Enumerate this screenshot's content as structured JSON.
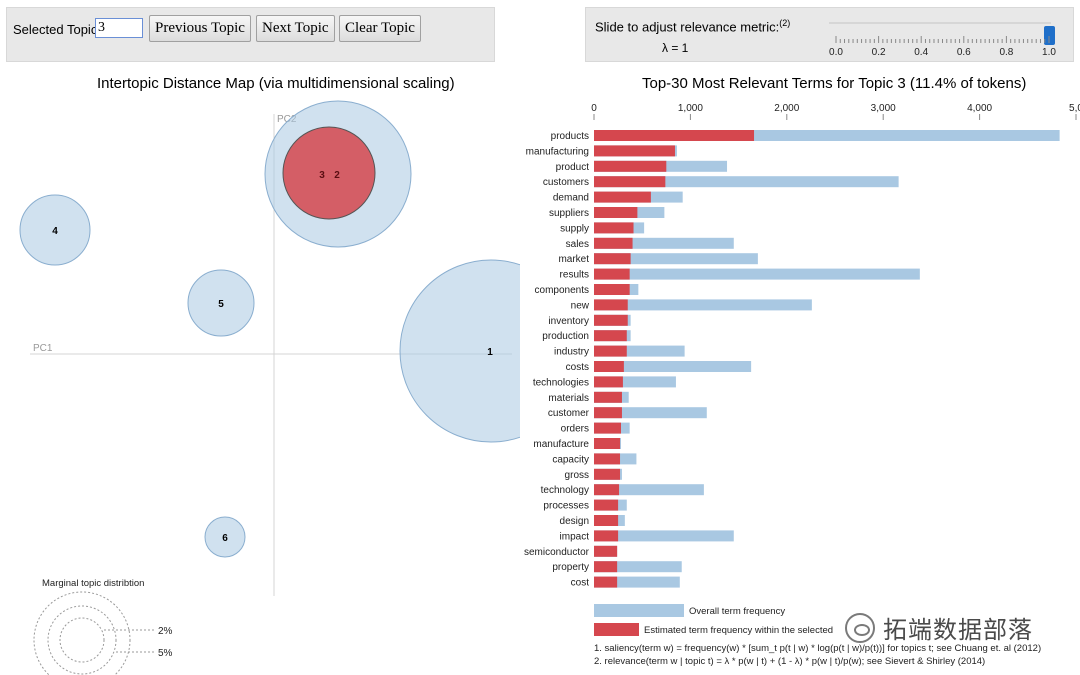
{
  "toolbar": {
    "selected_topic_label": "Selected Topic:",
    "selected_topic_value": "3",
    "prev_label": "Previous Topic",
    "next_label": "Next Topic",
    "clear_label": "Clear Topic"
  },
  "slider": {
    "label": "Slide to adjust relevance metric:",
    "footnote_ref": "(2)",
    "lambda_text": "λ = 1",
    "ticks": [
      "0.0",
      "0.2",
      "0.4",
      "0.6",
      "0.8",
      "1.0"
    ],
    "value": 1.0
  },
  "map": {
    "title": "Intertopic Distance Map (via multidimensional scaling)",
    "pc1_label": "PC1",
    "pc2_label": "PC2",
    "topics": [
      {
        "label": "1",
        "selected": false
      },
      {
        "label": "2",
        "selected": false
      },
      {
        "label": "3",
        "selected": true
      },
      {
        "label": "4",
        "selected": false
      },
      {
        "label": "5",
        "selected": false
      },
      {
        "label": "6",
        "selected": false
      }
    ],
    "marginal": {
      "title": "Marginal topic distribtion",
      "labels": [
        "2%",
        "5%"
      ]
    }
  },
  "chart_data": {
    "type": "bar",
    "title": "Top-30 Most Relevant Terms for Topic 3 (11.4% of tokens)",
    "x_ticks": [
      "0",
      "1,000",
      "2,000",
      "3,000",
      "4,000",
      "5,0"
    ],
    "xlim": [
      0,
      5000
    ],
    "categories": [
      "products",
      "manufacturing",
      "product",
      "customers",
      "demand",
      "suppliers",
      "supply",
      "sales",
      "market",
      "results",
      "components",
      "new",
      "inventory",
      "production",
      "industry",
      "costs",
      "technologies",
      "materials",
      "customer",
      "orders",
      "manufacture",
      "capacity",
      "gross",
      "technology",
      "processes",
      "design",
      "impact",
      "semiconductor",
      "property",
      "cost"
    ],
    "series": [
      {
        "name": "Overall term frequency",
        "color": "#a9c8e2",
        "values": [
          4830,
          860,
          1380,
          3160,
          920,
          730,
          520,
          1450,
          1700,
          3380,
          460,
          2260,
          380,
          380,
          940,
          1630,
          850,
          360,
          1170,
          370,
          280,
          440,
          290,
          1140,
          340,
          320,
          1450,
          240,
          910,
          890
        ]
      },
      {
        "name": "Estimated term frequency within the selected topic",
        "color": "#d5474e",
        "values": [
          1660,
          840,
          750,
          740,
          590,
          450,
          410,
          400,
          380,
          370,
          370,
          350,
          350,
          340,
          340,
          310,
          300,
          290,
          290,
          280,
          270,
          270,
          270,
          260,
          250,
          250,
          250,
          240,
          240,
          240
        ]
      }
    ],
    "legend": {
      "overall": "Overall term frequency",
      "estimated": "Estimated term frequency within the selected"
    },
    "footnotes": [
      "1. saliency(term w) = frequency(w) * [sum_t p(t | w) * log(p(t | w)/p(t))] for topics t; see Chuang et. al (2012)",
      "2. relevance(term w | topic t) = λ * p(w | t) + (1 - λ) * p(w | t)/p(w); see Sievert & Shirley (2014)"
    ]
  },
  "watermark": {
    "text": "拓端数据部落",
    "icon": "wechat-icon"
  }
}
